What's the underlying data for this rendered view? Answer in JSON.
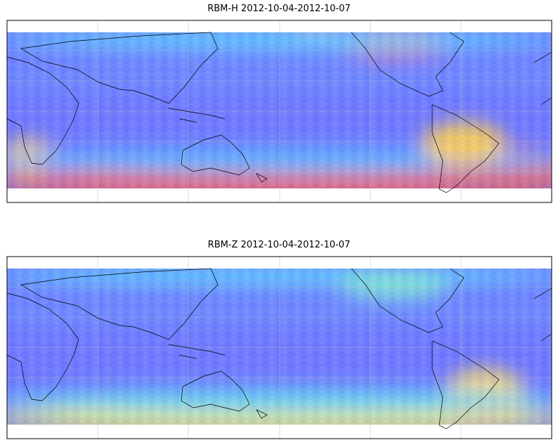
{
  "panels": [
    {
      "title": "RBM-H 2012-10-04-2012-10-07"
    },
    {
      "title": "RBM-Z 2012-10-04-2012-10-07"
    }
  ]
}
